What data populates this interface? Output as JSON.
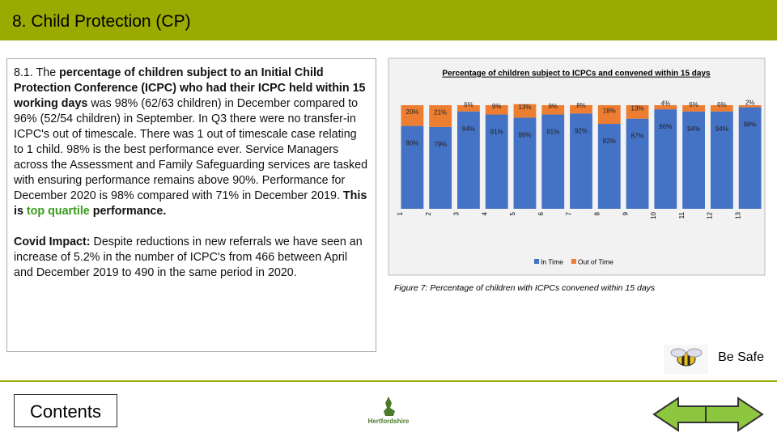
{
  "header": {
    "title": "8. Child Protection (CP)"
  },
  "text": {
    "paragraph1": [
      {
        "text": "8.1. The ",
        "style": "normal"
      },
      {
        "text": "percentage of children subject to an Initial Child Protection Conference (ICPC) who had their ICPC held within 15 working days",
        "style": "bold"
      },
      {
        "text": " was 98% (62/63 children) in December compared to 96% (52/54 children) in September. In Q3 there were no transfer-in ICPC's out of timescale.  There was 1 out of timescale case relating to 1 child. 98% is the best performance ever. Service Managers across the Assessment and Family Safeguarding services are tasked with ensuring performance remains above 90%. Performance for December 2020 is 98% compared with 71% in December 2019. ",
        "style": "normal"
      },
      {
        "text": "This is ",
        "style": "bold"
      },
      {
        "text": "top quartile",
        "style": "bold-green"
      },
      {
        "text": " performance.",
        "style": "bold"
      }
    ],
    "paragraph2": [
      {
        "text": "Covid Impact:",
        "style": "bold"
      },
      {
        "text": " Despite reductions in new referrals we have seen an increase of 5.2% in the number of ICPC's from 466 between April and December 2019 to 490 in the same period in 2020.",
        "style": "normal"
      }
    ]
  },
  "chart_data": {
    "type": "stacked_bar",
    "title": "Percentage of children subject to ICPCs and convened within 15 days",
    "categories": [
      "1",
      "2",
      "3",
      "4",
      "5",
      "6",
      "7",
      "8",
      "9",
      "10",
      "11",
      "12",
      "13"
    ],
    "ylim": [
      0,
      100
    ],
    "series": [
      {
        "name": "In Time",
        "color": "#4472c4",
        "values": [
          80,
          79,
          94,
          91,
          88,
          91,
          92,
          82,
          87,
          96,
          94,
          94,
          98
        ],
        "value_labels": [
          "80%",
          "79%",
          "94%",
          "91%",
          "88%",
          "91%",
          "92%",
          "82%",
          "87%",
          "96%",
          "94%",
          "94%",
          "98%"
        ]
      },
      {
        "name": "Out of Time",
        "color": "#ed7d31",
        "values": [
          20,
          21,
          6,
          9,
          13,
          9,
          8,
          18,
          13,
          4,
          6,
          6,
          2
        ],
        "value_labels": [
          "20%",
          "21%",
          "6%",
          "9%",
          "13%",
          "9%",
          "8%",
          "18%",
          "13%",
          "4%",
          "6%",
          "6%",
          "2%"
        ]
      }
    ]
  },
  "figure_caption": "Figure 7: Percentage of children with ICPCs convened within 15 days",
  "footer": {
    "be_safe": "Be Safe",
    "contents": "Contents",
    "logo": "Hertfordshire"
  }
}
